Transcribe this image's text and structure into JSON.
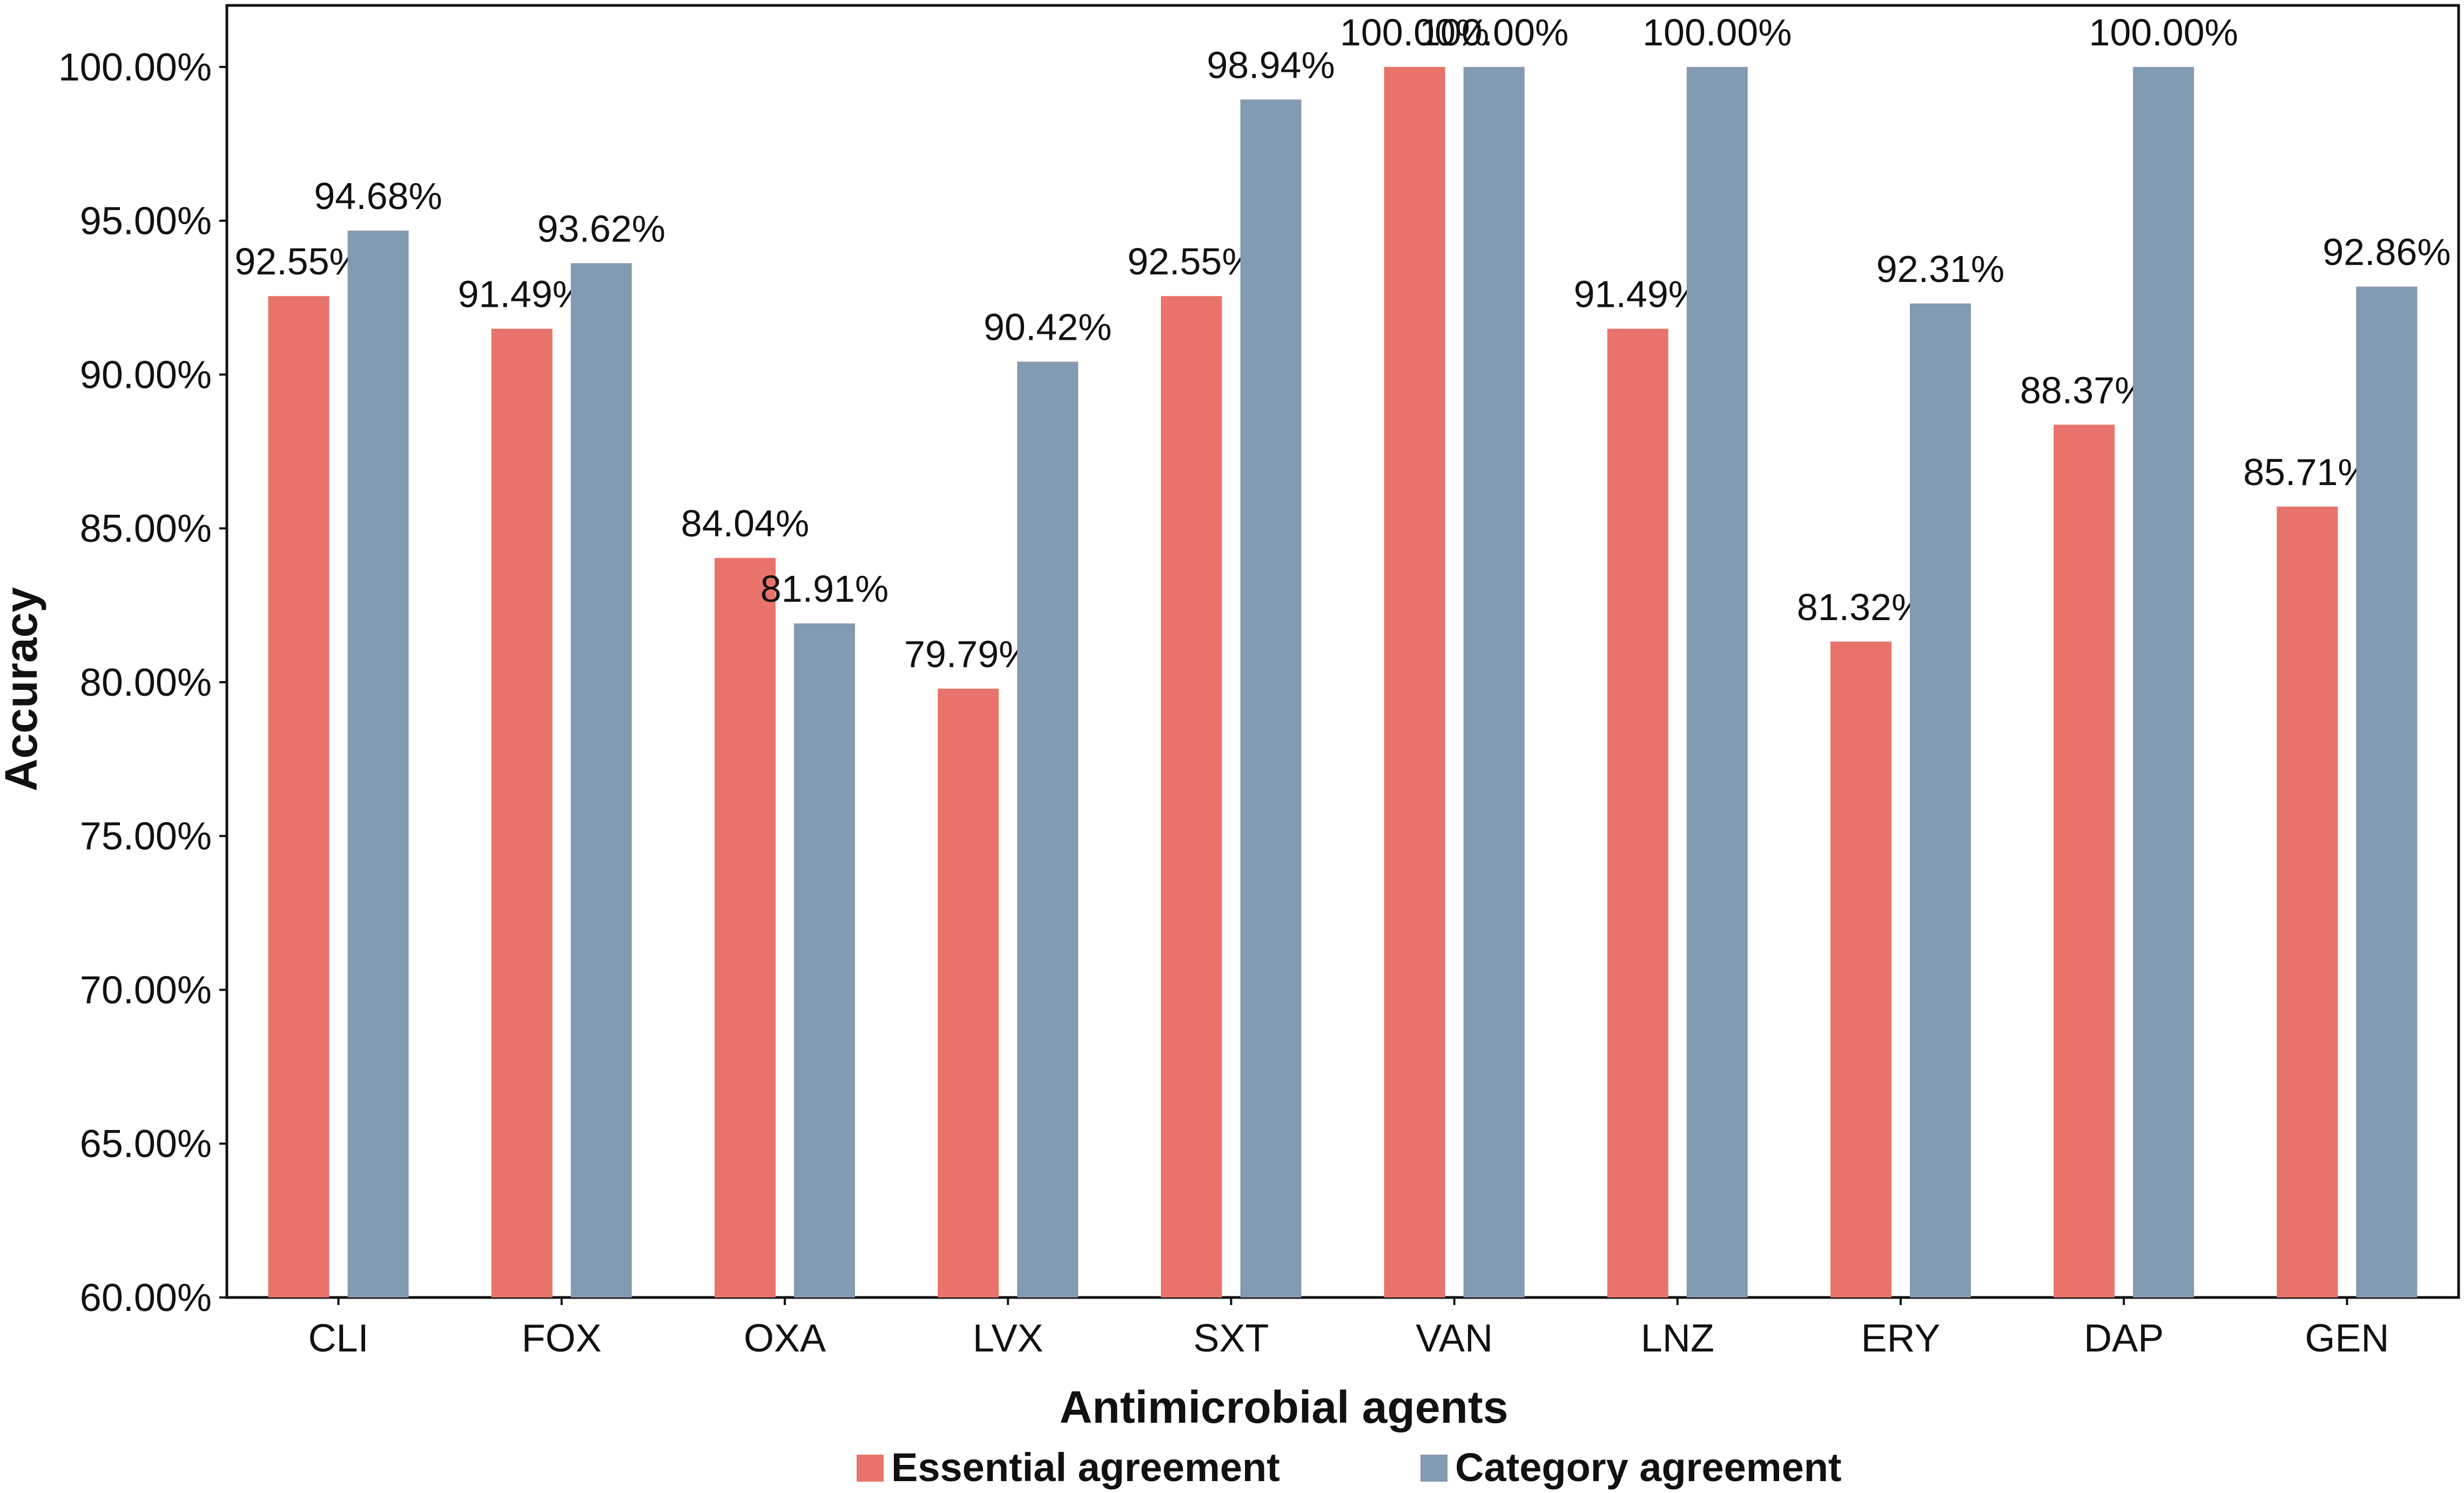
{
  "chart_data": {
    "type": "bar",
    "title": "",
    "xlabel": "Antimicrobial agents",
    "ylabel": "Accuracy",
    "ylim": [
      60,
      102
    ],
    "y_ticks": [
      60,
      65,
      70,
      75,
      80,
      85,
      90,
      95,
      100
    ],
    "y_tick_labels": [
      "60.00%",
      "65.00%",
      "70.00%",
      "75.00%",
      "80.00%",
      "85.00%",
      "90.00%",
      "95.00%",
      "100.00%"
    ],
    "categories": [
      "CLI",
      "FOX",
      "OXA",
      "LVX",
      "SXT",
      "VAN",
      "LNZ",
      "ERY",
      "DAP",
      "GEN"
    ],
    "series": [
      {
        "name": "Essential agreement",
        "color": "#e8736b",
        "values": [
          92.55,
          91.49,
          84.04,
          79.79,
          92.55,
          100.0,
          91.49,
          81.32,
          88.37,
          85.71
        ],
        "labels": [
          "92.55%",
          "91.49%",
          "84.04%",
          "79.79%",
          "92.55%",
          "100.00%",
          "91.49%",
          "81.32%",
          "88.37%",
          "85.71%"
        ]
      },
      {
        "name": "Category agreement",
        "color": "#8499b2",
        "values": [
          94.68,
          93.62,
          81.91,
          90.42,
          98.94,
          100.0,
          100.0,
          92.31,
          100.0,
          92.86
        ],
        "labels": [
          "94.68%",
          "93.62%",
          "81.91%",
          "90.42%",
          "98.94%",
          "100.00%",
          "100.00%",
          "92.31%",
          "100.00%",
          "92.86%"
        ]
      }
    ],
    "grid": false,
    "legend_position": "bottom"
  }
}
